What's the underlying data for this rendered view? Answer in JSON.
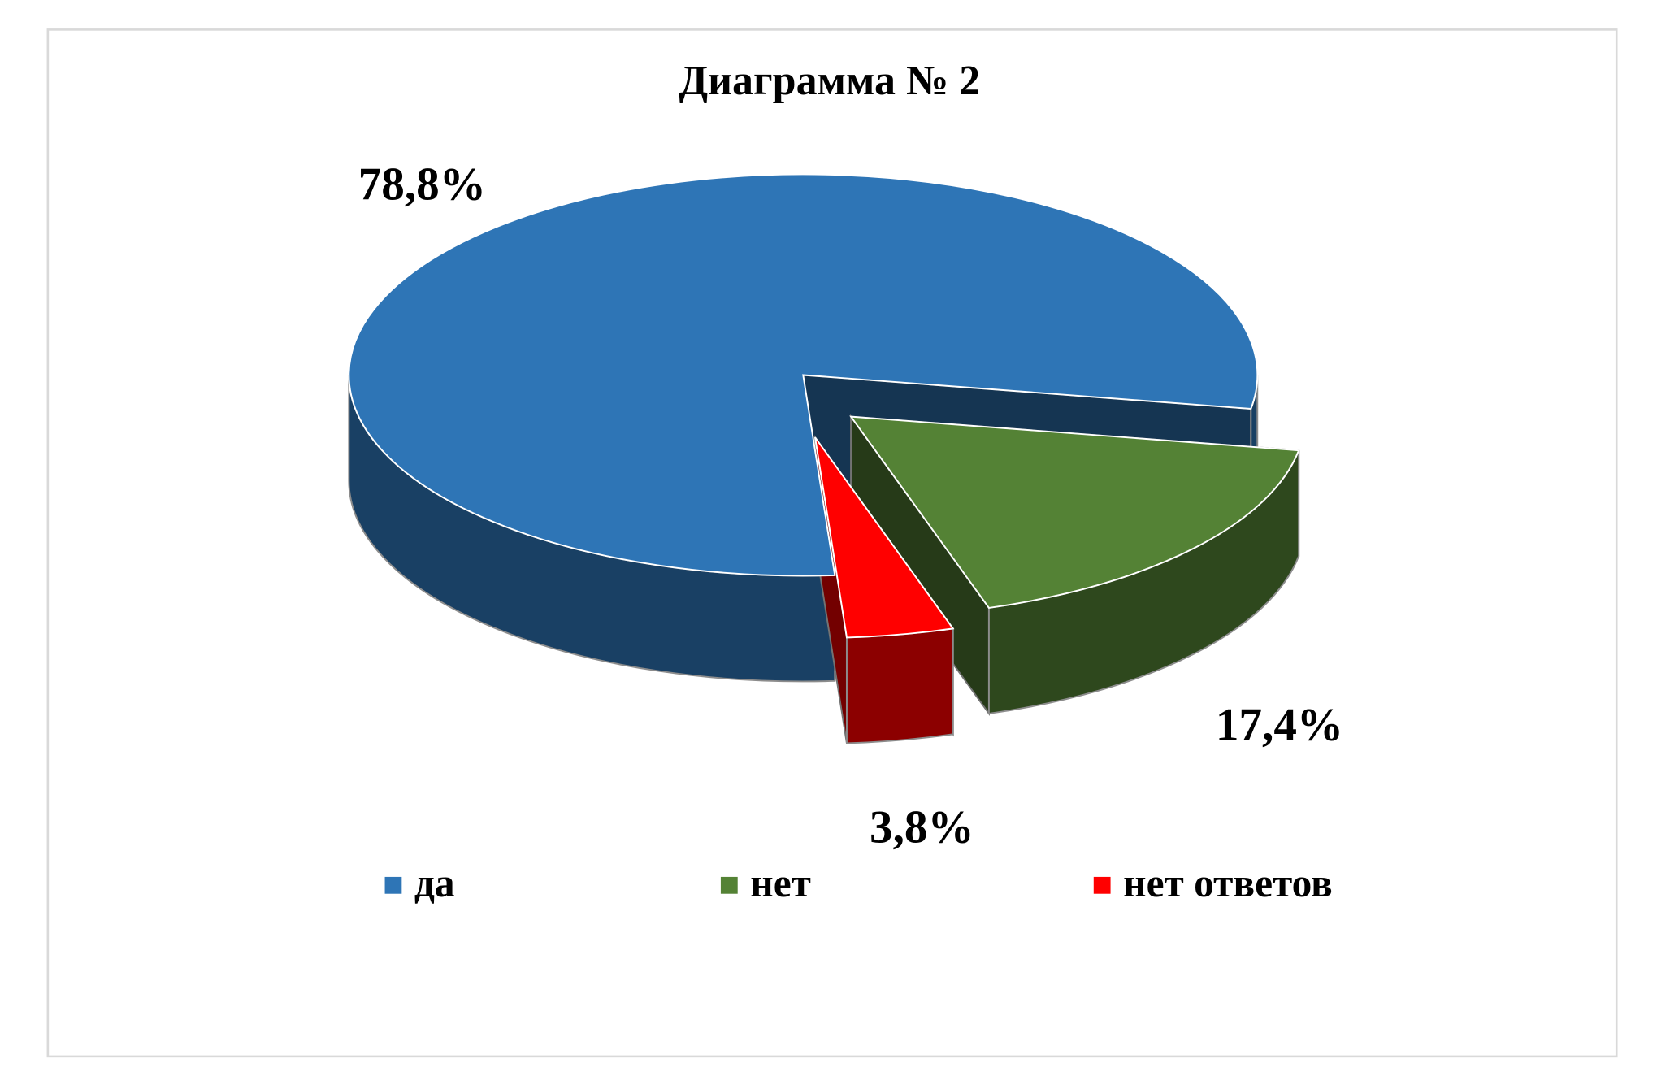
{
  "chart_data": {
    "type": "pie",
    "title": "Диаграмма № 2",
    "categories": [
      "да",
      "нет",
      "нет ответов"
    ],
    "values": [
      78.8,
      17.4,
      3.8
    ],
    "value_labels": [
      "78,8%",
      "17,4%",
      "3,8%"
    ],
    "colors": [
      "#2e75b6",
      "#548235",
      "#ff0000"
    ],
    "legend": "bottom"
  }
}
